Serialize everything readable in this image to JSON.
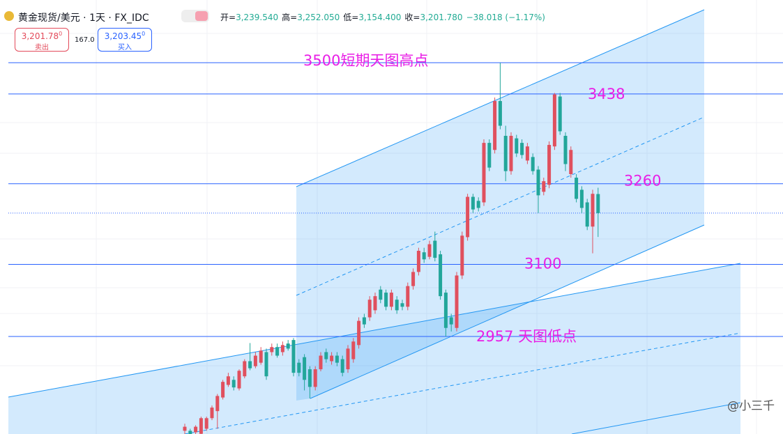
{
  "header": {
    "symbol": "黄金现货/美元 · 1天 · FX_IDC",
    "ohlc": [
      {
        "label": "开=",
        "value": "3,239.540"
      },
      {
        "label": "高=",
        "value": "3,252.050"
      },
      {
        "label": "低=",
        "value": "3,154.400"
      },
      {
        "label": "收=",
        "value": "3,201.780"
      }
    ],
    "change": "−38.018 (−1.17%)",
    "sell": {
      "price": "3,201.78",
      "sup": "0",
      "label": "卖出"
    },
    "spread": "167.0",
    "buy": {
      "price": "3,203.45",
      "sup": "0",
      "label": "买入"
    }
  },
  "watermark": "@小三千",
  "chart_data": {
    "type": "candlestick",
    "up_color": "#e0505e",
    "down_color": "#22a69a",
    "ylim": [
      2763.6,
      3624.4
    ],
    "categories": [
      null,
      null,
      null,
      null,
      null,
      null,
      null,
      null,
      null,
      null,
      null,
      null,
      null,
      null,
      null,
      null,
      null,
      null,
      null,
      null,
      null,
      null,
      null,
      null,
      null,
      null,
      null,
      null,
      null,
      null,
      null,
      null,
      null,
      null,
      null,
      null,
      null,
      null,
      null,
      null,
      null,
      null,
      null,
      null,
      null,
      null,
      null,
      null,
      null,
      null,
      null,
      null,
      null,
      null,
      null,
      null,
      null,
      null,
      null,
      null,
      null,
      null,
      null,
      null,
      null,
      null,
      null,
      null,
      null,
      null,
      null,
      null,
      null,
      null,
      null,
      null,
      null
    ],
    "open": [
      2770,
      2770,
      2767,
      2764,
      2774,
      2795,
      2809,
      2836,
      2861,
      2871,
      2854,
      2878,
      2908,
      2898,
      2905,
      2926,
      2926,
      2936,
      2926,
      2943,
      2950,
      2905,
      2916,
      2892,
      2857,
      2892,
      2926,
      2908,
      2919,
      2912,
      2892,
      2912,
      2940,
      2995,
      2995,
      3009,
      3050,
      3044,
      3016,
      3030,
      3023,
      3016,
      3057,
      3085,
      3124,
      3115,
      3147,
      3120,
      3044,
      2995,
      2974,
      3078,
      3154,
      3234,
      3226,
      3223,
      3341,
      3327,
      3424,
      3355,
      3285,
      3350,
      3341,
      3306,
      3313,
      3288,
      3244,
      3258,
      3334,
      3433,
      3355,
      3279,
      3272,
      3248,
      3223,
      3175,
      3239.54
    ],
    "high": [
      2784,
      2774,
      2781,
      2798,
      2798,
      2820,
      2843,
      2871,
      2885,
      2878,
      2892,
      2912,
      2944,
      2926,
      2936,
      2933,
      2943,
      2943,
      2947,
      2950,
      2954,
      2912,
      2922,
      2898,
      2898,
      2926,
      2933,
      2926,
      2926,
      2919,
      2940,
      2954,
      2995,
      3002,
      3037,
      3044,
      3057,
      3050,
      3050,
      3037,
      3030,
      3064,
      3092,
      3133,
      3133,
      3147,
      3165,
      3127,
      3050,
      3002,
      3085,
      3165,
      3240,
      3240,
      3233,
      3348,
      3348,
      3431,
      3500,
      3375,
      3362,
      3357,
      3348,
      3341,
      3320,
      3295,
      3272,
      3344,
      3440,
      3440,
      3362,
      3334,
      3279,
      3255,
      3230,
      3248,
      3252.05
    ],
    "low": [
      2763,
      2763,
      2763,
      2763,
      2770,
      2791,
      2774,
      2832,
      2857,
      2850,
      2850,
      2874,
      2890,
      2894,
      2901,
      2871,
      2919,
      2915,
      2919,
      2929,
      2878,
      2878,
      2850,
      2834,
      2850,
      2888,
      2905,
      2901,
      2898,
      2878,
      2885,
      2905,
      2933,
      2974,
      2988,
      3002,
      3023,
      3009,
      3009,
      3002,
      3009,
      3009,
      3050,
      3078,
      3103,
      3110,
      3106,
      3030,
      2957,
      2967,
      2967,
      3071,
      3147,
      3202,
      3205,
      3216,
      3285,
      3320,
      3368,
      3265,
      3278,
      3313,
      3310,
      3299,
      3278,
      3202,
      3237,
      3251,
      3327,
      3357,
      3285,
      3272,
      3223,
      3202,
      3168,
      3122,
      3154.4
    ],
    "close": [
      2778,
      2763,
      2778,
      2795,
      2795,
      2816,
      2839,
      2867,
      2878,
      2856,
      2889,
      2908,
      2894,
      2919,
      2929,
      2878,
      2936,
      2919,
      2940,
      2933,
      2885,
      2885,
      2871,
      2857,
      2892,
      2919,
      2912,
      2919,
      2905,
      2885,
      2933,
      2947,
      2988,
      2981,
      3030,
      3037,
      3030,
      3016,
      3044,
      3009,
      3016,
      3057,
      3085,
      3127,
      3110,
      3140,
      3113,
      3037,
      2974,
      2981,
      3078,
      3157,
      3234,
      3209,
      3212,
      3341,
      3292,
      3424,
      3375,
      3285,
      3355,
      3320,
      3317,
      3334,
      3285,
      3237,
      3265,
      3337,
      3437,
      3364,
      3299,
      3327,
      3230,
      3212,
      3175,
      3240,
      3201.78
    ],
    "levels": [
      {
        "value": 3500,
        "label": "3500短期天图高点"
      },
      3438,
      3260,
      3100,
      {
        "value": 2957,
        "label": "2957 天图低点"
      }
    ],
    "level_color": "#2962ff",
    "last_price_line": true
  }
}
